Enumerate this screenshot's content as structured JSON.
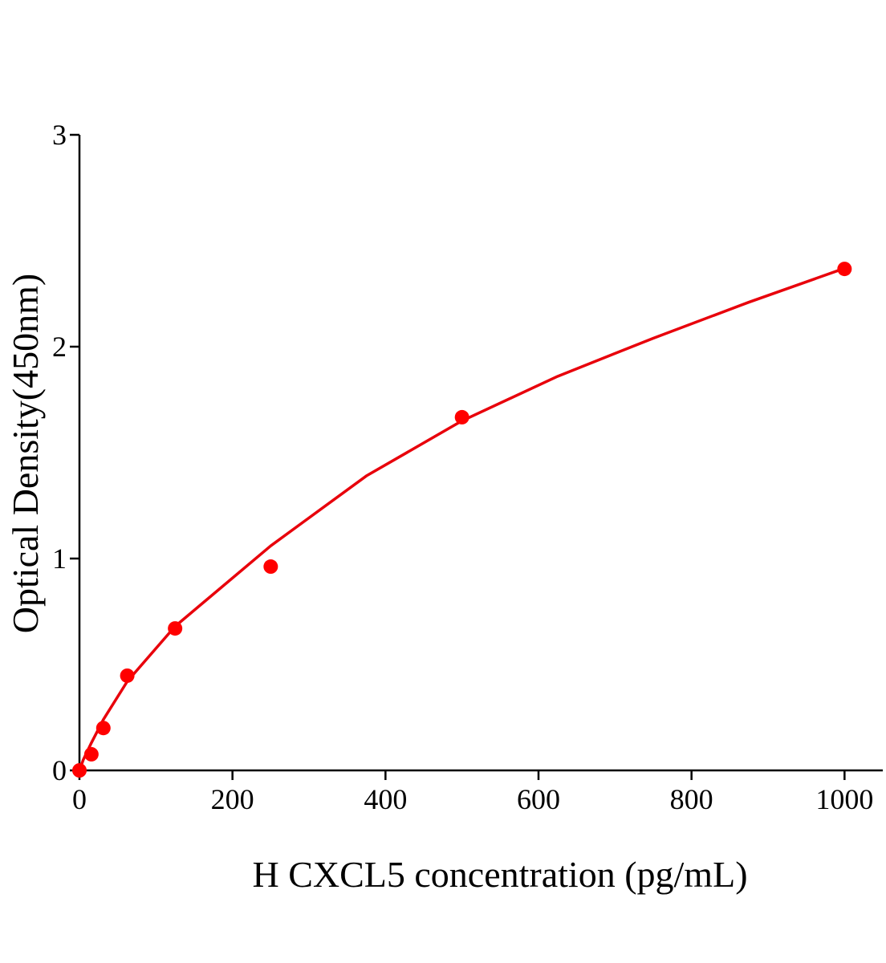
{
  "chart_data": {
    "type": "scatter",
    "xlabel": "H CXCL5 concentration (pg/mL)",
    "ylabel": "Optical Density(450nm)",
    "x": [
      0,
      15.6,
      31.25,
      62.5,
      125,
      250,
      500,
      1000
    ],
    "values": [
      0,
      0.076,
      0.2,
      0.447,
      0.67,
      0.962,
      1.667,
      2.367
    ],
    "color": "#ff0000",
    "fit": {
      "color": "#e8000b",
      "x": [
        0,
        5,
        15.6,
        31.25,
        62.5,
        125,
        250,
        375,
        500,
        625,
        750,
        875,
        1000
      ],
      "values": [
        0,
        0.05,
        0.13,
        0.24,
        0.42,
        0.68,
        1.06,
        1.39,
        1.65,
        1.86,
        2.04,
        2.21,
        2.37
      ]
    },
    "xlim": [
      0,
      1050
    ],
    "xticks": [
      0,
      200,
      400,
      600,
      800,
      1000
    ],
    "ylim": [
      0,
      3
    ],
    "yticks": [
      0,
      1,
      2,
      3
    ]
  }
}
